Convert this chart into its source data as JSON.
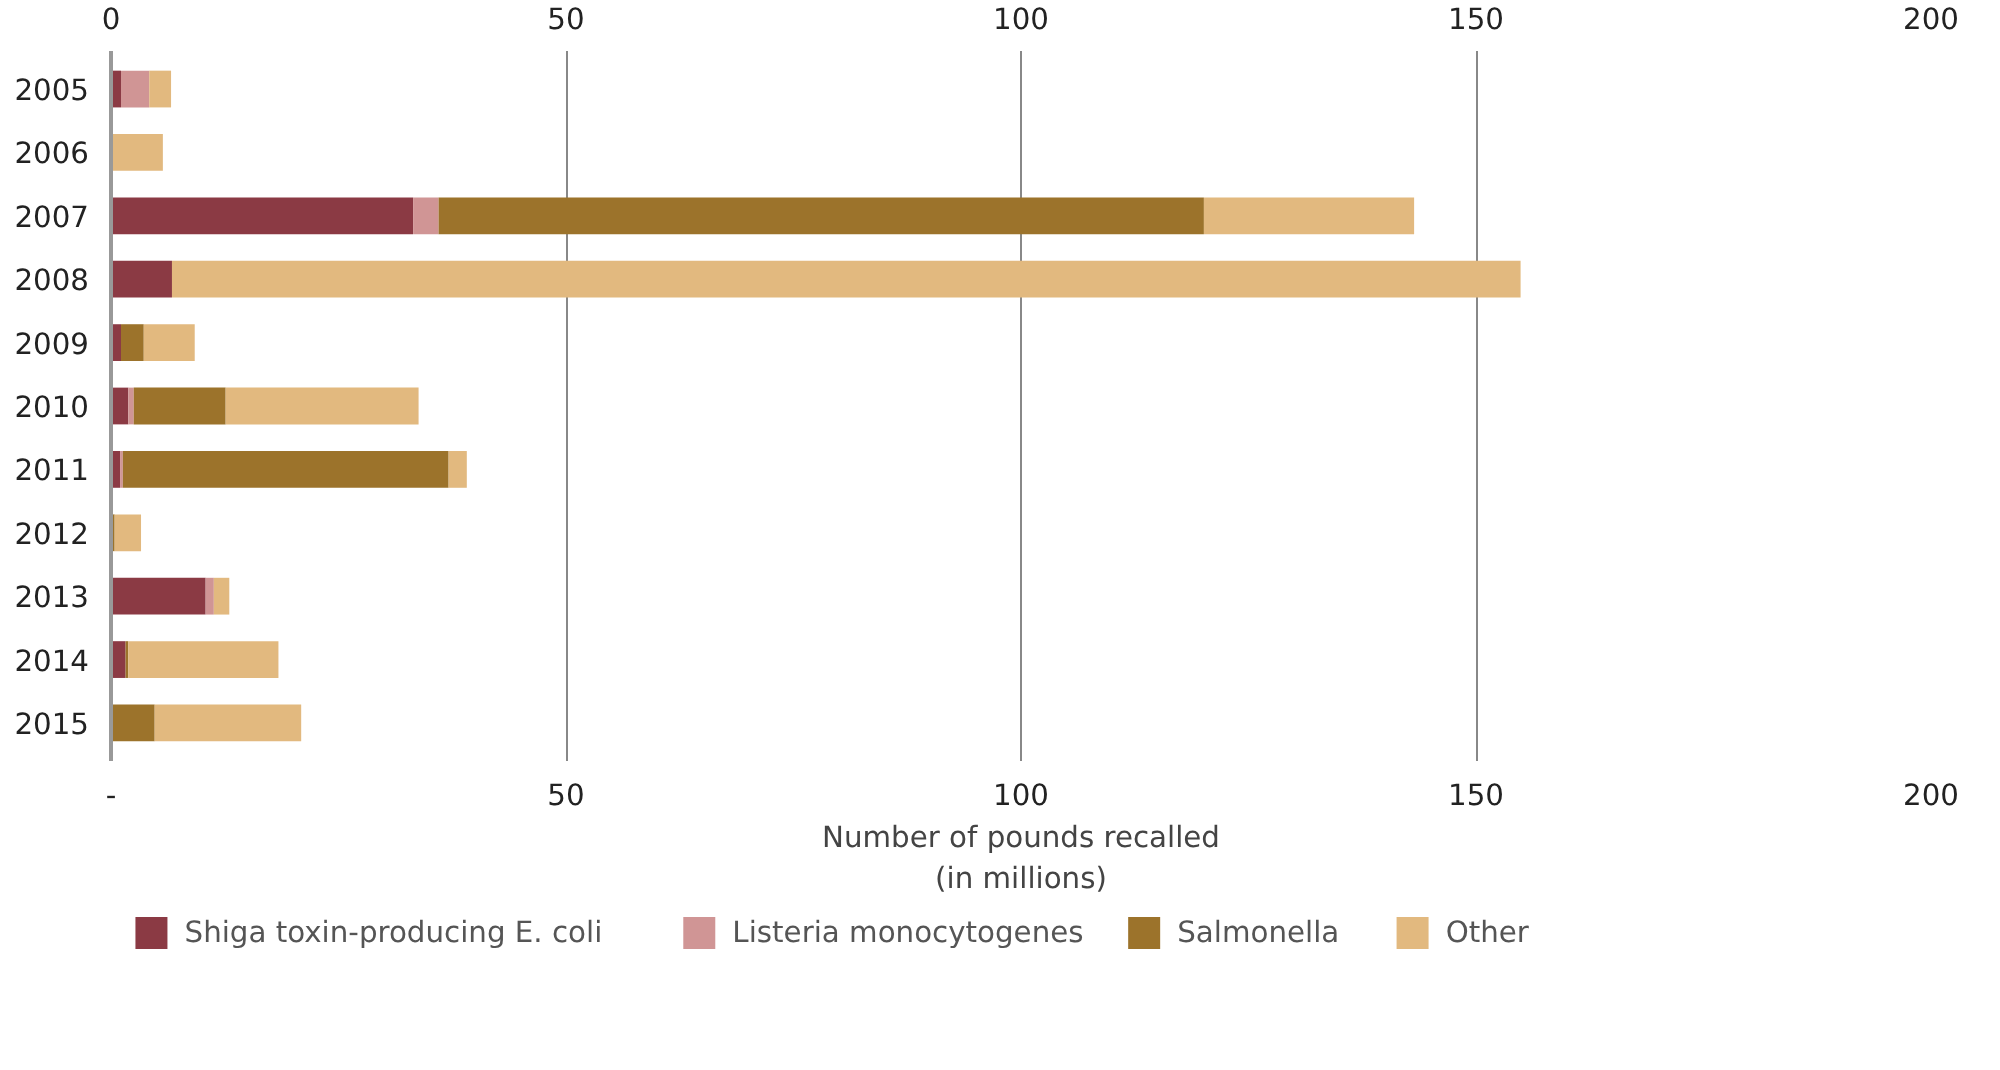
{
  "chart_data": {
    "type": "bar",
    "orientation": "horizontal",
    "stacked": true,
    "categories": [
      "2005",
      "2006",
      "2007",
      "2008",
      "2009",
      "2010",
      "2011",
      "2012",
      "2013",
      "2014",
      "2015"
    ],
    "series": [
      {
        "name": "Shiga toxin-producing E. coli",
        "color": "#8b3a44",
        "values": [
          1.1,
          0,
          33.2,
          6.7,
          1.1,
          1.9,
          1.0,
          0,
          10.4,
          1.6,
          0
        ]
      },
      {
        "name": "Listeria monocytogenes",
        "color": "#d09595",
        "values": [
          3.1,
          0,
          2.8,
          0,
          0,
          0.6,
          0.3,
          0,
          0.9,
          0,
          0
        ]
      },
      {
        "name": "Salmonella",
        "color": "#9c732b",
        "values": [
          0,
          0,
          84.1,
          0,
          2.5,
          10.1,
          35.8,
          0.4,
          0,
          0.3,
          4.8
        ]
      },
      {
        "name": "Other",
        "color": "#e2b97f",
        "values": [
          2.4,
          5.7,
          23.1,
          148.2,
          5.6,
          21.2,
          2.0,
          2.9,
          1.7,
          16.5,
          16.1
        ]
      }
    ],
    "xlabel": "Number of pounds recalled\n(in millions)",
    "xlim": [
      0,
      200
    ],
    "xticks": [
      {
        "value": 0,
        "label": "-"
      },
      50,
      100,
      150,
      200
    ],
    "x2lim": [
      0,
      200
    ],
    "x2ticks": [
      0,
      50,
      100,
      150,
      200
    ],
    "grid": "x",
    "legend": "bottom"
  }
}
